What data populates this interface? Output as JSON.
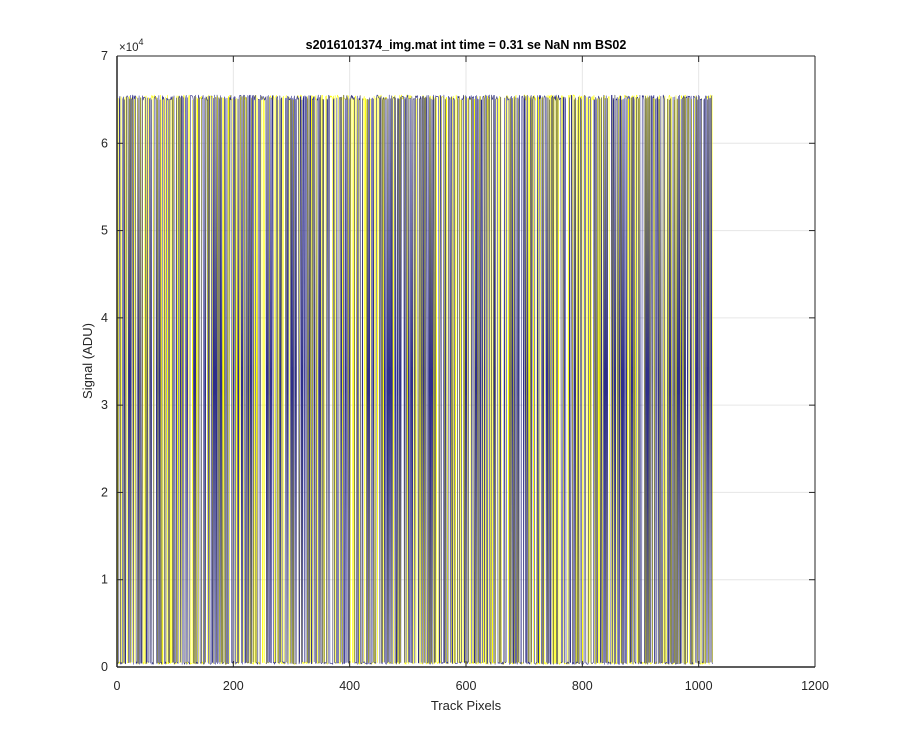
{
  "chart_data": {
    "type": "line",
    "title": "s2016101374_img.mat int time = 0.31 se  NaN nm BS02",
    "xlabel": "Track Pixels",
    "ylabel": "Signal (ADU)",
    "xlim": [
      0,
      1200
    ],
    "ylim": [
      0,
      70000
    ],
    "x_ticks": [
      "0",
      "200",
      "400",
      "600",
      "800",
      "1000",
      "1200"
    ],
    "y_ticks": [
      "0",
      "1",
      "2",
      "3",
      "4",
      "5",
      "6",
      "7"
    ],
    "y_exponent_label": "×10",
    "y_exponent_power": "4",
    "grid": true,
    "series": [
      {
        "color": "#ffff00",
        "x_range": [
          1,
          1024
        ],
        "value_levels": [
          0,
          65535
        ],
        "pattern": "rapid alternation between 0 and 65535 ADU across all pixels"
      },
      {
        "color": "#2e2e8a",
        "x_range": [
          1,
          1024
        ],
        "value_levels": [
          0,
          65535
        ],
        "pattern": "rapid alternation between 0 and 65535 ADU across all pixels"
      }
    ]
  }
}
